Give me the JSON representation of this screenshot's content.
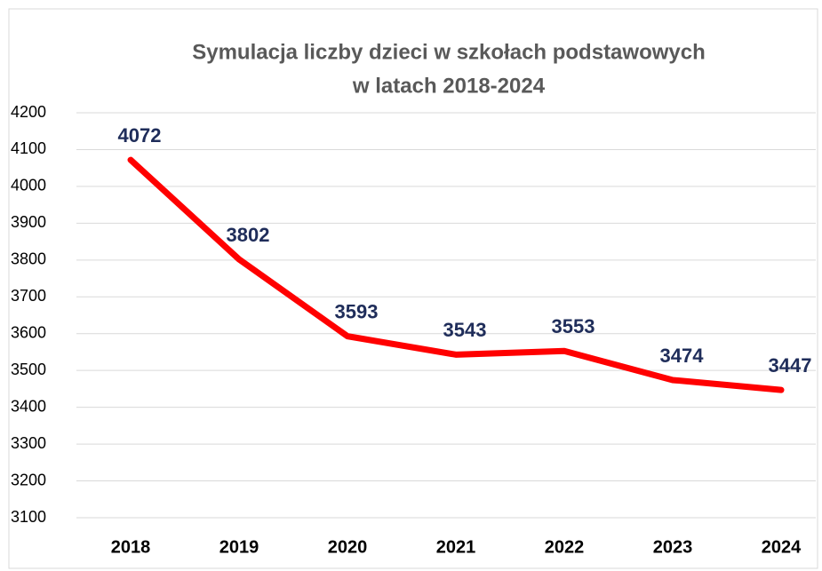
{
  "chart_data": {
    "type": "line",
    "title": [
      "Symulacja liczby dzieci w szkołach podstawowych",
      "w latach 2018-2024"
    ],
    "categories": [
      "2018",
      "2019",
      "2020",
      "2021",
      "2022",
      "2023",
      "2024"
    ],
    "series": [
      {
        "color": "#ff0000",
        "values": [
          4072,
          3802,
          3593,
          3543,
          3553,
          3474,
          3447
        ]
      }
    ],
    "ylim": [
      3100,
      4200
    ],
    "yticks": [
      3100,
      3200,
      3300,
      3400,
      3500,
      3600,
      3700,
      3800,
      3900,
      4000,
      4100,
      4200
    ],
    "grid": true
  }
}
